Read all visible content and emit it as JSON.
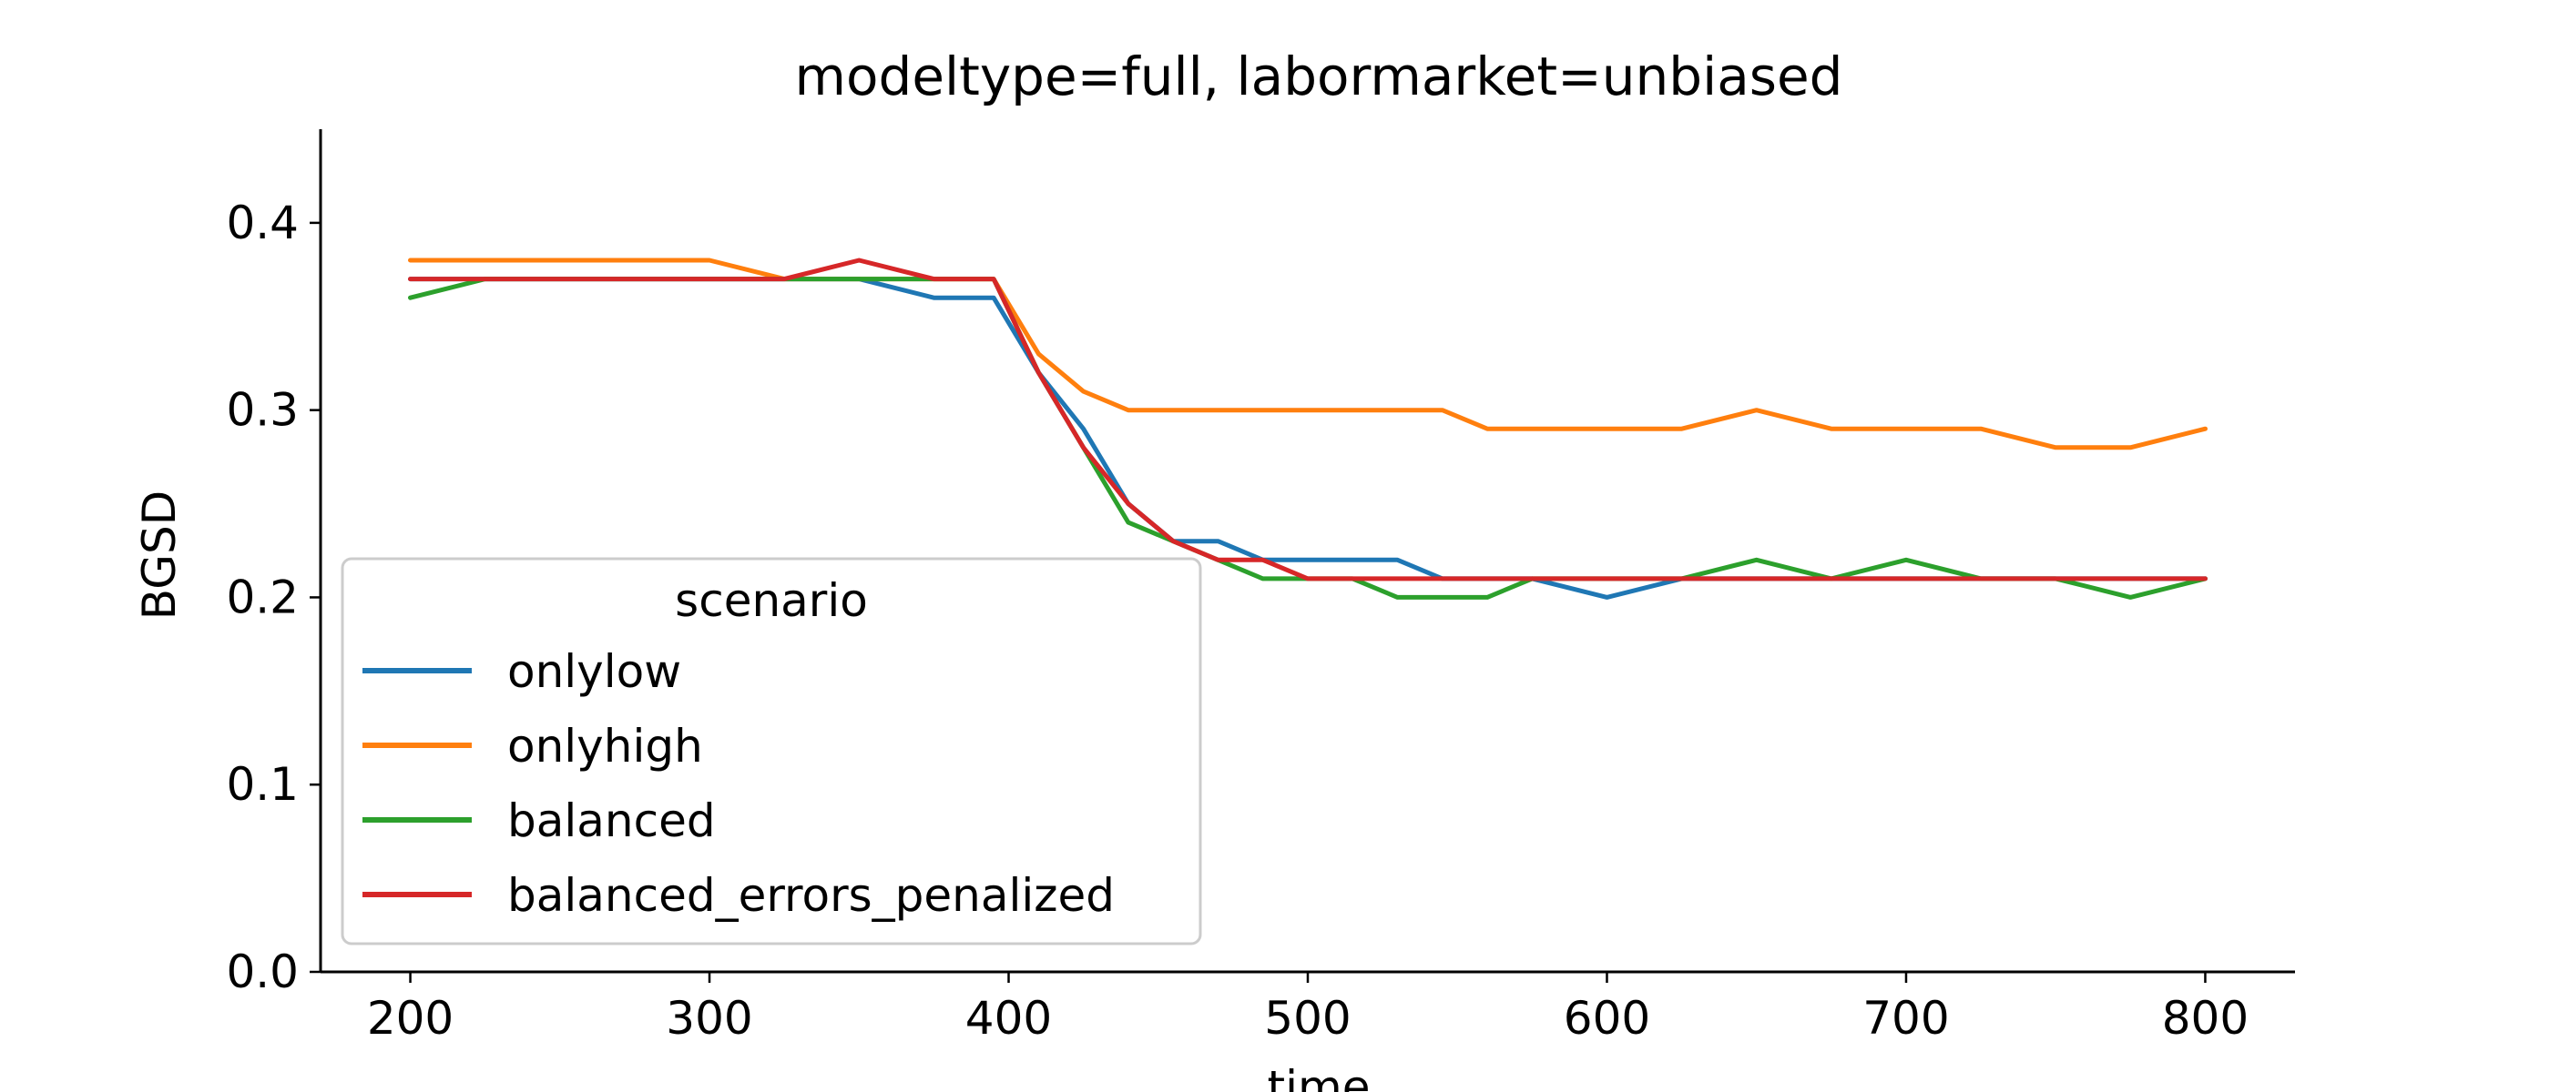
{
  "chart_data": {
    "type": "line",
    "title": "modeltype=full, labormarket=unbiased",
    "xlabel": "time",
    "ylabel": "BGSD",
    "xlim": [
      170,
      830
    ],
    "ylim": [
      0,
      0.45
    ],
    "xticks": [
      200,
      300,
      400,
      500,
      600,
      700,
      800
    ],
    "xtick_labels": [
      "200",
      "300",
      "400",
      "500",
      "600",
      "700",
      "800"
    ],
    "yticks": [
      0.0,
      0.1,
      0.2,
      0.3,
      0.4
    ],
    "ytick_labels": [
      "0.0",
      "0.1",
      "0.2",
      "0.3",
      "0.4"
    ],
    "grid": false,
    "legend": {
      "title": "scenario",
      "placement": "lower-left"
    },
    "x": [
      200,
      225,
      250,
      275,
      300,
      325,
      350,
      375,
      395,
      410,
      425,
      440,
      455,
      470,
      485,
      500,
      515,
      530,
      545,
      560,
      575,
      600,
      625,
      650,
      675,
      700,
      725,
      750,
      775,
      800
    ],
    "series": [
      {
        "name": "onlylow",
        "color": "#1f77b4",
        "values": [
          0.37,
          0.37,
          0.37,
          0.37,
          0.37,
          0.37,
          0.37,
          0.36,
          0.36,
          0.32,
          0.29,
          0.25,
          0.23,
          0.23,
          0.22,
          0.22,
          0.22,
          0.22,
          0.21,
          0.21,
          0.21,
          0.2,
          0.21,
          0.21,
          0.21,
          0.21,
          0.21,
          0.21,
          0.21,
          0.21
        ]
      },
      {
        "name": "onlyhigh",
        "color": "#ff7f0e",
        "values": [
          0.38,
          0.38,
          0.38,
          0.38,
          0.38,
          0.37,
          0.37,
          0.37,
          0.37,
          0.33,
          0.31,
          0.3,
          0.3,
          0.3,
          0.3,
          0.3,
          0.3,
          0.3,
          0.3,
          0.29,
          0.29,
          0.29,
          0.29,
          0.3,
          0.29,
          0.29,
          0.29,
          0.28,
          0.28,
          0.29
        ]
      },
      {
        "name": "balanced",
        "color": "#2ca02c",
        "values": [
          0.36,
          0.37,
          0.37,
          0.37,
          0.37,
          0.37,
          0.37,
          0.37,
          0.37,
          0.32,
          0.28,
          0.24,
          0.23,
          0.22,
          0.21,
          0.21,
          0.21,
          0.2,
          0.2,
          0.2,
          0.21,
          0.21,
          0.21,
          0.22,
          0.21,
          0.22,
          0.21,
          0.21,
          0.2,
          0.21
        ]
      },
      {
        "name": "balanced_errors_penalized",
        "color": "#d62728",
        "values": [
          0.37,
          0.37,
          0.37,
          0.37,
          0.37,
          0.37,
          0.38,
          0.37,
          0.37,
          0.32,
          0.28,
          0.25,
          0.23,
          0.22,
          0.22,
          0.21,
          0.21,
          0.21,
          0.21,
          0.21,
          0.21,
          0.21,
          0.21,
          0.21,
          0.21,
          0.21,
          0.21,
          0.21,
          0.21,
          0.21
        ]
      }
    ]
  }
}
